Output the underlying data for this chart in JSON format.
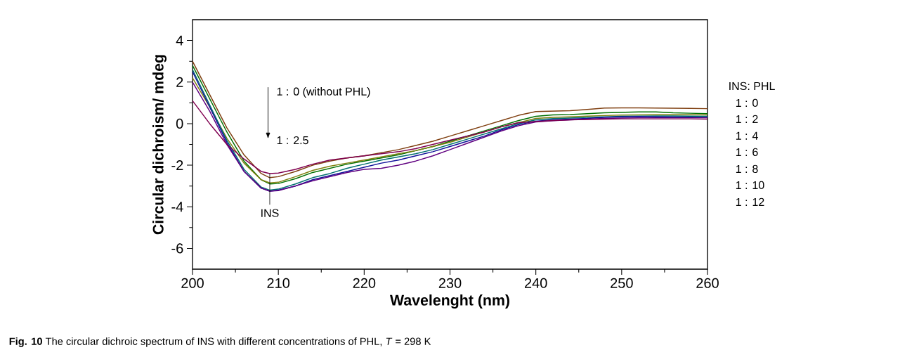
{
  "chart_data": {
    "type": "line",
    "xlabel": "Wavelenght (nm)",
    "ylabel": "Circular dichroism/ mdeg",
    "x": [
      200,
      202,
      204,
      206,
      208,
      209,
      210,
      212,
      214,
      216,
      218,
      220,
      222,
      224,
      226,
      228,
      230,
      232,
      234,
      236,
      238,
      240,
      242,
      244,
      246,
      248,
      250,
      252,
      254,
      256,
      258,
      260
    ],
    "series": [
      {
        "color": "#7f3f10",
        "values": [
          3.0,
          1.4,
          -0.2,
          -1.5,
          -2.4,
          -2.6,
          -2.55,
          -2.3,
          -2.0,
          -1.8,
          -1.65,
          -1.55,
          -1.4,
          -1.25,
          -1.05,
          -0.85,
          -0.6,
          -0.35,
          -0.1,
          0.15,
          0.4,
          0.58,
          0.6,
          0.62,
          0.68,
          0.75,
          0.76,
          0.76,
          0.75,
          0.74,
          0.73,
          0.72
        ]
      },
      {
        "color": "#007000",
        "values": [
          2.8,
          1.2,
          -0.4,
          -1.8,
          -2.7,
          -2.9,
          -2.88,
          -2.65,
          -2.35,
          -2.15,
          -1.95,
          -1.8,
          -1.65,
          -1.5,
          -1.3,
          -1.1,
          -0.85,
          -0.6,
          -0.35,
          -0.1,
          0.15,
          0.35,
          0.42,
          0.44,
          0.48,
          0.52,
          0.54,
          0.56,
          0.56,
          0.52,
          0.5,
          0.48
        ]
      },
      {
        "color": "#808010",
        "values": [
          2.2,
          0.8,
          -0.7,
          -1.9,
          -2.7,
          -2.85,
          -2.82,
          -2.55,
          -2.25,
          -2.05,
          -1.9,
          -1.75,
          -1.6,
          -1.45,
          -1.3,
          -1.1,
          -0.9,
          -0.65,
          -0.4,
          -0.15,
          0.05,
          0.25,
          0.3,
          0.33,
          0.36,
          0.39,
          0.41,
          0.42,
          0.43,
          0.43,
          0.43,
          0.42
        ]
      },
      {
        "color": "#007070",
        "values": [
          2.6,
          0.9,
          -0.8,
          -2.2,
          -3.05,
          -3.2,
          -3.15,
          -2.9,
          -2.6,
          -2.4,
          -2.15,
          -1.95,
          -1.75,
          -1.6,
          -1.45,
          -1.25,
          -1.0,
          -0.75,
          -0.5,
          -0.25,
          0.0,
          0.18,
          0.24,
          0.27,
          0.3,
          0.33,
          0.35,
          0.36,
          0.37,
          0.37,
          0.36,
          0.35
        ]
      },
      {
        "color": "#10109a",
        "values": [
          2.5,
          0.8,
          -0.9,
          -2.3,
          -3.1,
          -3.25,
          -3.2,
          -3.0,
          -2.7,
          -2.5,
          -2.3,
          -2.1,
          -1.9,
          -1.75,
          -1.55,
          -1.35,
          -1.1,
          -0.85,
          -0.6,
          -0.3,
          -0.05,
          0.12,
          0.18,
          0.22,
          0.25,
          0.3,
          0.33,
          0.34,
          0.33,
          0.32,
          0.31,
          0.3
        ]
      },
      {
        "color": "#600080",
        "values": [
          2.0,
          0.6,
          -1.0,
          -2.3,
          -3.1,
          -3.25,
          -3.22,
          -3.0,
          -2.75,
          -2.55,
          -2.35,
          -2.2,
          -2.15,
          -2.0,
          -1.8,
          -1.55,
          -1.25,
          -0.95,
          -0.65,
          -0.35,
          -0.1,
          0.08,
          0.14,
          0.18,
          0.22,
          0.25,
          0.27,
          0.28,
          0.28,
          0.28,
          0.28,
          0.28
        ]
      },
      {
        "color": "#800050",
        "values": [
          1.1,
          0.0,
          -1.0,
          -1.7,
          -2.3,
          -2.4,
          -2.38,
          -2.2,
          -1.95,
          -1.75,
          -1.65,
          -1.55,
          -1.45,
          -1.35,
          -1.2,
          -1.0,
          -0.8,
          -0.6,
          -0.4,
          -0.15,
          0.05,
          0.1,
          0.15,
          0.18,
          0.2,
          0.22,
          0.23,
          0.23,
          0.23,
          0.23,
          0.23,
          0.22
        ]
      }
    ],
    "xlim": [
      200,
      260
    ],
    "ylim": [
      -7,
      5
    ],
    "xticks": [
      200,
      210,
      220,
      230,
      240,
      250,
      260
    ],
    "yticks": [
      -6,
      -4,
      -2,
      0,
      2,
      4
    ],
    "grid": false,
    "marker": "none",
    "line_style": "solid",
    "annotations": [
      "1 : 0 (without PHL)",
      "1 : 2.5",
      {
        "text": "INS",
        "x": 209,
        "y": -2.4
      },
      "INS: PHL",
      "1 : 0",
      "1 : 2",
      "1 : 4",
      "1 : 6",
      "1 : 8",
      "1 : 10",
      "1 : 12",
      "**Fig. 10** The circular dichroic spectrum of INS with different concentrations of PHL, *T* = 298 K"
    ]
  }
}
